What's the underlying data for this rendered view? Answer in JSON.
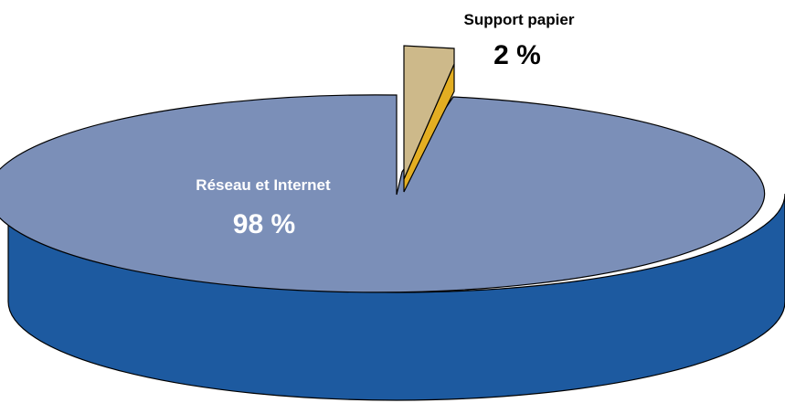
{
  "chart_data": {
    "type": "pie",
    "style": "3d-exploded",
    "slices": [
      {
        "label": "Réseau et Internet",
        "value_text": "98 %",
        "value": 98,
        "top_color": "#7b8fb8",
        "side_color": "#1d5aa0",
        "label_color": "#ffffff"
      },
      {
        "label": "Support papier",
        "value_text": "2 %",
        "value": 2,
        "top_color": "#cdb98a",
        "side_color": "#e3ae22",
        "label_color": "#000000"
      }
    ]
  }
}
